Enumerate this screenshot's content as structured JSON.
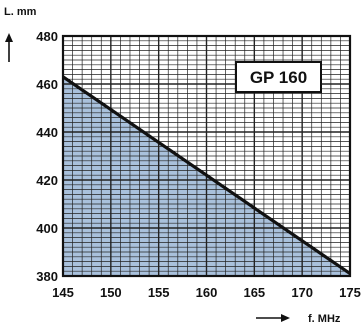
{
  "chart_data": {
    "type": "area",
    "title": "GP 160",
    "xlabel": "f. MHz",
    "ylabel": "L. mm",
    "xlim": [
      145,
      175
    ],
    "ylim": [
      380,
      480
    ],
    "x_ticks": [
      "145",
      "150",
      "155",
      "160",
      "165",
      "170",
      "175"
    ],
    "y_ticks": [
      "380",
      "400",
      "420",
      "440",
      "460",
      "480"
    ],
    "grid": true,
    "series": [
      {
        "x": [
          145,
          175
        ],
        "y": [
          463,
          381
        ]
      }
    ],
    "colors": {
      "fill": "#a9c1dc",
      "line": "#111111",
      "grid": "#222222"
    }
  }
}
